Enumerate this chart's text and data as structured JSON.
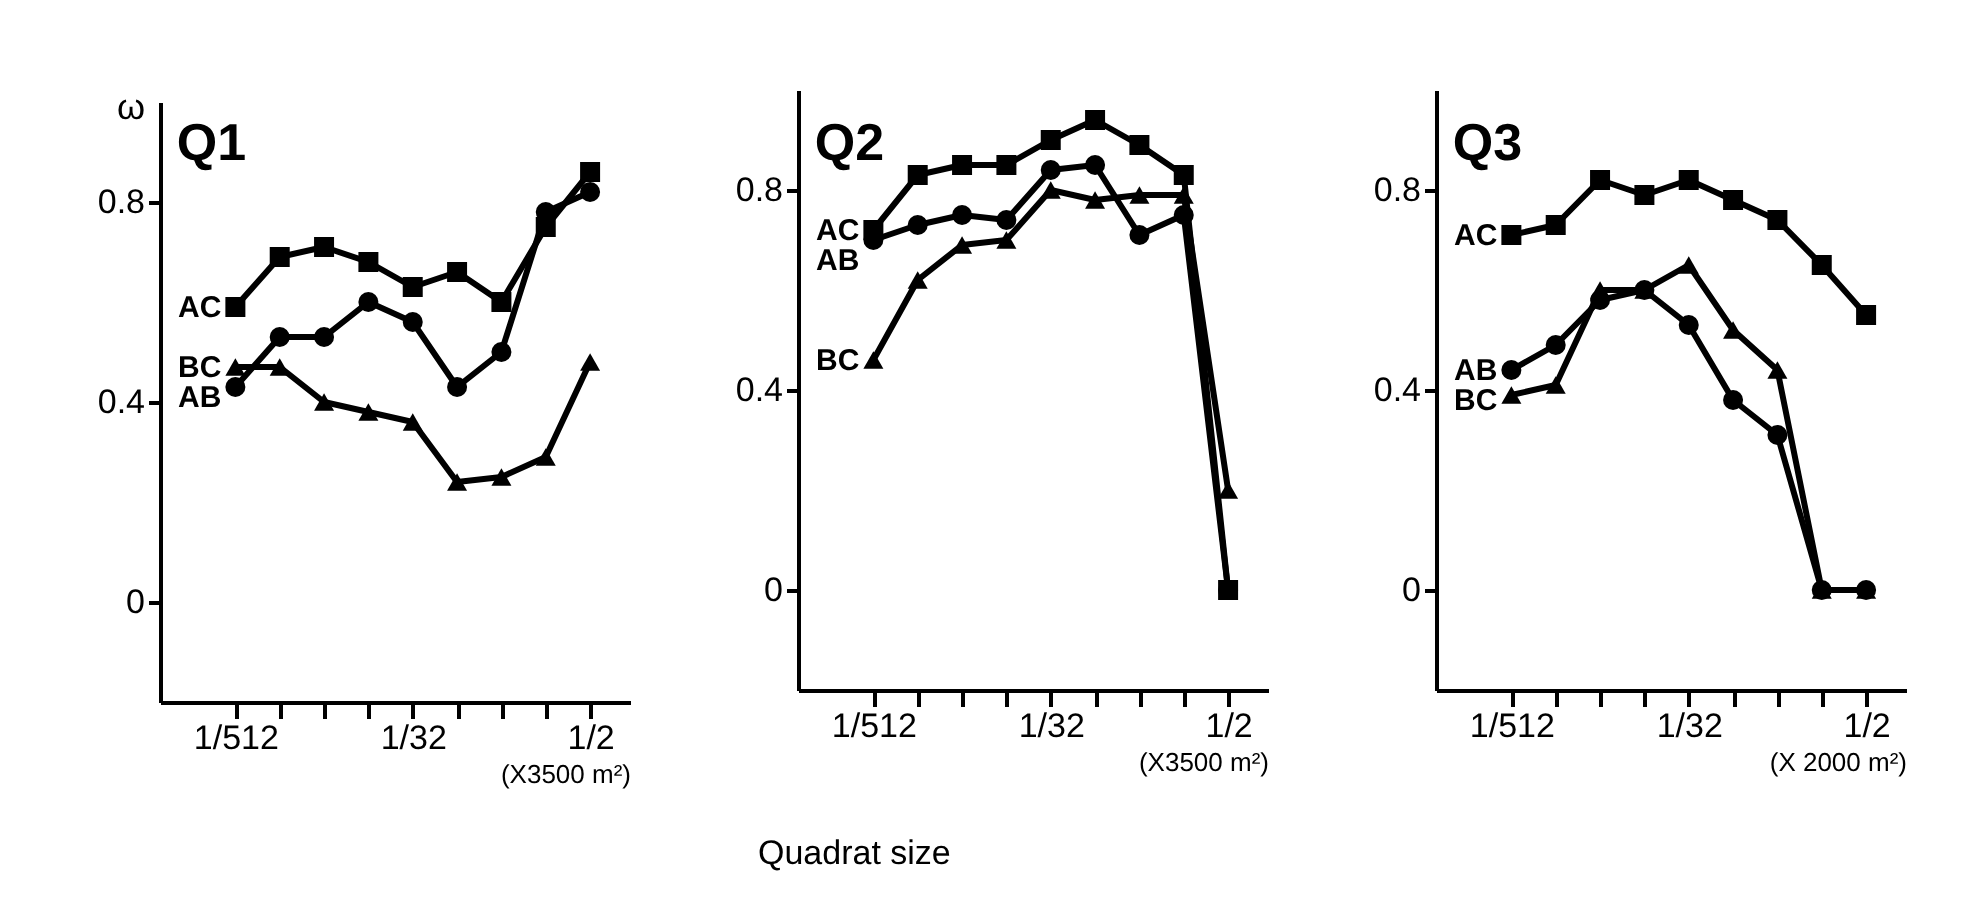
{
  "chart_data": [
    {
      "type": "line",
      "title": "Q1",
      "ylabel": "ω",
      "xlabel": "(X3500 m²)",
      "marker": "circle",
      "grid": false,
      "categories": [
        "1/512",
        null,
        null,
        null,
        "1/32",
        null,
        null,
        null,
        "1/2"
      ],
      "ylim": [
        -0.2,
        1.0
      ],
      "yticks": [
        0,
        0.4,
        0.8
      ],
      "series": [
        {
          "name": "AC",
          "color": "#000000",
          "marker": "square",
          "values": [
            0.59,
            0.69,
            0.71,
            0.68,
            0.63,
            0.66,
            0.6,
            0.75,
            0.86
          ]
        },
        {
          "name": "BC",
          "color": "#000000",
          "marker": "triangle",
          "values": [
            0.47,
            0.47,
            0.4,
            0.38,
            0.36,
            0.24,
            0.25,
            0.29,
            0.48
          ]
        },
        {
          "name": "AB",
          "color": "#000000",
          "marker": "circle",
          "values": [
            0.43,
            0.53,
            0.53,
            0.6,
            0.56,
            0.43,
            0.5,
            0.78,
            0.82
          ]
        }
      ]
    },
    {
      "type": "line",
      "title": "Q2",
      "xlabel": "(X3500 m²)",
      "marker": "circle",
      "grid": false,
      "annotations": [
        "Quadrat size"
      ],
      "categories": [
        "1/512",
        null,
        null,
        null,
        "1/32",
        null,
        null,
        null,
        "1/2"
      ],
      "ylim": [
        -0.2,
        1.0
      ],
      "yticks": [
        0,
        0.4,
        0.8
      ],
      "series": [
        {
          "name": "AC",
          "color": "#000000",
          "marker": "square",
          "values": [
            0.72,
            0.83,
            0.85,
            0.85,
            0.9,
            0.94,
            0.89,
            0.83,
            0
          ]
        },
        {
          "name": "AB",
          "color": "#000000",
          "marker": "circle",
          "values": [
            0.7,
            0.73,
            0.75,
            0.74,
            0.84,
            0.85,
            0.71,
            0.75,
            0
          ]
        },
        {
          "name": "BC",
          "color": "#000000",
          "marker": "triangle",
          "values": [
            0.46,
            0.62,
            0.69,
            0.7,
            0.8,
            0.78,
            0.79,
            0.79,
            0.2
          ]
        }
      ]
    },
    {
      "type": "line",
      "title": "Q3",
      "xlabel": "(X 2000 m²)",
      "marker": "circle",
      "grid": false,
      "categories": [
        "1/512",
        null,
        null,
        null,
        "1/32",
        null,
        null,
        null,
        "1/2"
      ],
      "ylim": [
        -0.2,
        1.0
      ],
      "yticks": [
        0,
        0.4,
        0.8
      ],
      "series": [
        {
          "name": "AC",
          "color": "#000000",
          "marker": "square",
          "values": [
            0.71,
            0.73,
            0.82,
            0.79,
            0.82,
            0.78,
            0.74,
            0.65,
            0.55
          ]
        },
        {
          "name": "AB",
          "color": "#000000",
          "marker": "circle",
          "values": [
            0.44,
            0.49,
            0.58,
            0.6,
            0.53,
            0.38,
            0.31,
            0,
            0
          ]
        },
        {
          "name": "BC",
          "color": "#000000",
          "marker": "triangle",
          "values": [
            0.39,
            0.41,
            0.6,
            0.6,
            0.65,
            0.52,
            0.44,
            0,
            0
          ]
        }
      ]
    }
  ]
}
